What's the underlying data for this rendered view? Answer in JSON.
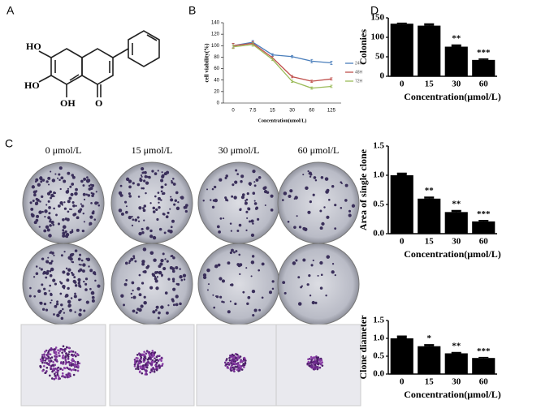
{
  "panel_labels": [
    "A",
    "B",
    "C",
    "D"
  ],
  "structure_labels": [
    "HO",
    "HO",
    "OH",
    "O"
  ],
  "photo_columns": [
    "0 μmol/L",
    "15 μmol/L",
    "30 μmol/L",
    "60 μmol/L"
  ],
  "chart_data": [
    {
      "type": "line",
      "ylabel": "cell viability(%)",
      "xlabel": "Concentration(umol/L)",
      "categories": [
        "0",
        "7.5",
        "15",
        "30",
        "60",
        "125"
      ],
      "series": [
        {
          "name": "24H",
          "color": "#4a7ebb",
          "values": [
            100,
            106,
            84,
            81,
            73,
            70
          ],
          "errors": [
            4,
            3,
            2,
            2,
            3,
            3
          ]
        },
        {
          "name": "48H",
          "color": "#c0504d",
          "values": [
            100,
            104,
            79,
            46,
            38,
            42
          ],
          "errors": [
            4,
            3,
            2,
            2,
            2,
            2
          ]
        },
        {
          "name": "72H",
          "color": "#9bbb59",
          "values": [
            98,
            102,
            76,
            38,
            26,
            29
          ],
          "errors": [
            3,
            3,
            2,
            2,
            2,
            2
          ]
        }
      ],
      "ylim": [
        0,
        140
      ],
      "yticks": [
        0,
        20,
        40,
        60,
        80,
        100,
        120,
        140
      ]
    },
    {
      "type": "bar",
      "ylabel": "Colonies",
      "xlabel": "Concentration(μmol/L)",
      "categories": [
        "0",
        "15",
        "30",
        "60"
      ],
      "values": [
        135,
        130,
        76,
        42
      ],
      "errors": [
        2,
        5,
        5,
        3
      ],
      "annotations": [
        null,
        null,
        "**",
        "***"
      ],
      "color": "#000000",
      "ylim": [
        0,
        150
      ],
      "yticks": [
        0,
        50,
        100,
        150
      ]
    },
    {
      "type": "bar",
      "ylabel": "Area of single clone",
      "xlabel": "Concentration(μmol/L)",
      "categories": [
        "0",
        "15",
        "30",
        "60"
      ],
      "values": [
        1.0,
        0.6,
        0.37,
        0.21
      ],
      "errors": [
        0.04,
        0.03,
        0.03,
        0.02
      ],
      "annotations": [
        null,
        "**",
        "**",
        "***"
      ],
      "color": "#000000",
      "ylim": [
        0,
        1.5
      ],
      "yticks": [
        {
          "value": 0,
          "label": "0.0"
        },
        0.5,
        {
          "value": 1,
          "label": "1.0"
        },
        1.5
      ]
    },
    {
      "type": "bar",
      "ylabel": "Clone diameter",
      "xlabel": "Concentration(μmol/L)",
      "categories": [
        "0",
        "15",
        "30",
        "60"
      ],
      "values": [
        1.0,
        0.78,
        0.58,
        0.45
      ],
      "errors": [
        0.07,
        0.05,
        0.03,
        0.02
      ],
      "annotations": [
        null,
        "*",
        "**",
        "***"
      ],
      "color": "#000000",
      "ylim": [
        0,
        1.5
      ],
      "yticks": [
        {
          "value": 0,
          "label": "0.0"
        },
        0.5,
        {
          "value": 1,
          "label": "1.0"
        },
        1.5
      ]
    }
  ]
}
